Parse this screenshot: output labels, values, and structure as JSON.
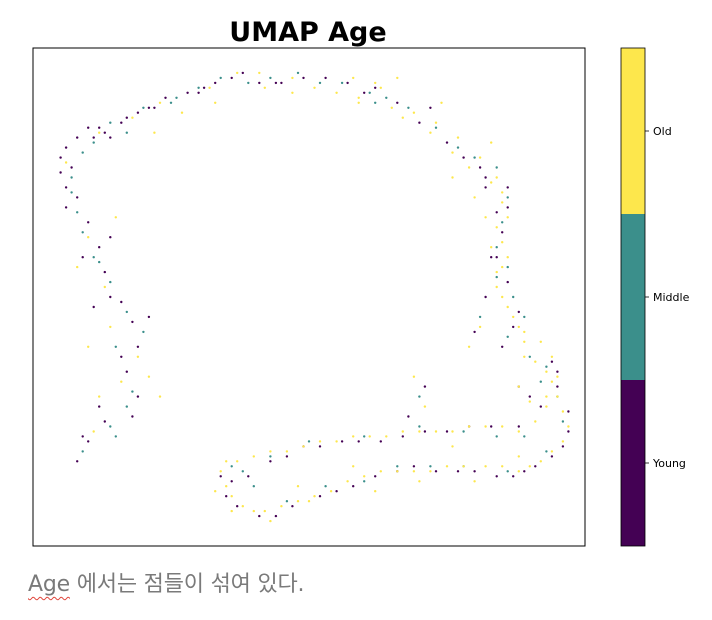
{
  "chart_data": {
    "type": "scatter",
    "title": "UMAP Age",
    "xlabel": "",
    "ylabel": "",
    "axes_ticks_visible": false,
    "grid": false,
    "legend": "colorbar-right",
    "colorbar": {
      "colormap": "viridis",
      "categories": [
        "Young",
        "Middle",
        "Old"
      ],
      "colors": {
        "Young": "#440154",
        "Middle": "#3b8f8b",
        "Old": "#fde74c"
      }
    },
    "xlim": [
      0,
      100
    ],
    "ylim": [
      0,
      100
    ],
    "series": [
      {
        "name": "Young",
        "color": "#440154",
        "points": [
          [
            8,
            17
          ],
          [
            10,
            21
          ],
          [
            13,
            25
          ],
          [
            12,
            28
          ],
          [
            17,
            35
          ],
          [
            19,
            40
          ],
          [
            18,
            45
          ],
          [
            16,
            49
          ],
          [
            14,
            50
          ],
          [
            13,
            55
          ],
          [
            12,
            60
          ],
          [
            10,
            65
          ],
          [
            8,
            70
          ],
          [
            6,
            72
          ],
          [
            5,
            75
          ],
          [
            5,
            78
          ],
          [
            6,
            80
          ],
          [
            8,
            82
          ],
          [
            10,
            84
          ],
          [
            12,
            84
          ],
          [
            13,
            83
          ],
          [
            14,
            82
          ],
          [
            16,
            85
          ],
          [
            19,
            87
          ],
          [
            21,
            88
          ],
          [
            24,
            90
          ],
          [
            28,
            91
          ],
          [
            31,
            92
          ],
          [
            33,
            93
          ],
          [
            36,
            94
          ],
          [
            38,
            95
          ],
          [
            41,
            93
          ],
          [
            45,
            93
          ],
          [
            49,
            94
          ],
          [
            53,
            94
          ],
          [
            57,
            93
          ],
          [
            62,
            92
          ],
          [
            66,
            89
          ],
          [
            70,
            85
          ],
          [
            75,
            81
          ],
          [
            78,
            78
          ],
          [
            81,
            76
          ],
          [
            82,
            74
          ],
          [
            86,
            72
          ],
          [
            86,
            68
          ],
          [
            85,
            63
          ],
          [
            84,
            58
          ],
          [
            86,
            53
          ],
          [
            88,
            47
          ],
          [
            87,
            44
          ],
          [
            85,
            40
          ],
          [
            88,
            32
          ],
          [
            90,
            30
          ],
          [
            92,
            28
          ],
          [
            88,
            24
          ],
          [
            83,
            24
          ],
          [
            79,
            24
          ],
          [
            75,
            23
          ],
          [
            71,
            23
          ],
          [
            67,
            22
          ],
          [
            63,
            21
          ],
          [
            59,
            21
          ],
          [
            56,
            21
          ],
          [
            52,
            20
          ],
          [
            49,
            20
          ],
          [
            46,
            18
          ],
          [
            43,
            17
          ],
          [
            39,
            14
          ],
          [
            36,
            13
          ],
          [
            34,
            14
          ],
          [
            35,
            10
          ],
          [
            37,
            8
          ],
          [
            41,
            6
          ],
          [
            44,
            6
          ],
          [
            47,
            8
          ],
          [
            52,
            10
          ],
          [
            55,
            11
          ],
          [
            58,
            12
          ],
          [
            62,
            14
          ],
          [
            66,
            15
          ],
          [
            69,
            16
          ],
          [
            73,
            15
          ],
          [
            77,
            15
          ],
          [
            80,
            15
          ],
          [
            84,
            14
          ],
          [
            87,
            14
          ],
          [
            89,
            15
          ],
          [
            91,
            16
          ],
          [
            94,
            18
          ],
          [
            96,
            20
          ],
          [
            97,
            23
          ],
          [
            97,
            27
          ],
          [
            95,
            32
          ],
          [
            95,
            35
          ],
          [
            94,
            37
          ],
          [
            68,
            26
          ],
          [
            71,
            32
          ],
          [
            80,
            43
          ],
          [
            82,
            50
          ],
          [
            83,
            58
          ],
          [
            84,
            67
          ],
          [
            82,
            72
          ],
          [
            72,
            88
          ],
          [
            60,
            91
          ],
          [
            44,
            93
          ],
          [
            30,
            91
          ],
          [
            22,
            88
          ],
          [
            17,
            86
          ],
          [
            11,
            82
          ],
          [
            7,
            76
          ],
          [
            9,
            58
          ],
          [
            11,
            48
          ],
          [
            16,
            38
          ],
          [
            19,
            30
          ],
          [
            18,
            26
          ],
          [
            9,
            22
          ],
          [
            21,
            46
          ],
          [
            14,
            62
          ],
          [
            6,
            68
          ]
        ]
      },
      {
        "name": "Middle",
        "color": "#3b8f8b",
        "points": [
          [
            9,
            19
          ],
          [
            14,
            24
          ],
          [
            17,
            28
          ],
          [
            18,
            31
          ],
          [
            15,
            40
          ],
          [
            17,
            47
          ],
          [
            14,
            53
          ],
          [
            11,
            58
          ],
          [
            9,
            63
          ],
          [
            8,
            67
          ],
          [
            7,
            74
          ],
          [
            9,
            79
          ],
          [
            11,
            81
          ],
          [
            14,
            85
          ],
          [
            17,
            83
          ],
          [
            20,
            88
          ],
          [
            25,
            89
          ],
          [
            30,
            92
          ],
          [
            34,
            94
          ],
          [
            39,
            93
          ],
          [
            43,
            94
          ],
          [
            48,
            95
          ],
          [
            52,
            93
          ],
          [
            56,
            93
          ],
          [
            61,
            91
          ],
          [
            64,
            90
          ],
          [
            68,
            88
          ],
          [
            73,
            84
          ],
          [
            77,
            80
          ],
          [
            80,
            78
          ],
          [
            84,
            76
          ],
          [
            86,
            70
          ],
          [
            85,
            65
          ],
          [
            84,
            60
          ],
          [
            86,
            56
          ],
          [
            87,
            50
          ],
          [
            89,
            46
          ],
          [
            86,
            42
          ],
          [
            90,
            38
          ],
          [
            92,
            33
          ],
          [
            89,
            22
          ],
          [
            84,
            22
          ],
          [
            78,
            23
          ],
          [
            70,
            24
          ],
          [
            60,
            22
          ],
          [
            50,
            21
          ],
          [
            43,
            18
          ],
          [
            38,
            15
          ],
          [
            40,
            12
          ],
          [
            46,
            9
          ],
          [
            53,
            12
          ],
          [
            60,
            13
          ],
          [
            66,
            16
          ],
          [
            72,
            16
          ],
          [
            78,
            16
          ],
          [
            86,
            15
          ],
          [
            93,
            19
          ],
          [
            96,
            25
          ],
          [
            95,
            30
          ],
          [
            93,
            36
          ],
          [
            70,
            30
          ],
          [
            81,
            46
          ],
          [
            84,
            54
          ],
          [
            20,
            43
          ],
          [
            12,
            57
          ],
          [
            7,
            71
          ],
          [
            26,
            90
          ],
          [
            62,
            89
          ],
          [
            36,
            16
          ],
          [
            15,
            22
          ]
        ]
      },
      {
        "name": "Old",
        "color": "#fde74c",
        "points": [
          [
            11,
            23
          ],
          [
            16,
            33
          ],
          [
            19,
            38
          ],
          [
            13,
            52
          ],
          [
            10,
            62
          ],
          [
            6,
            77
          ],
          [
            12,
            83
          ],
          [
            18,
            86
          ],
          [
            23,
            89
          ],
          [
            32,
            92
          ],
          [
            37,
            95
          ],
          [
            42,
            92
          ],
          [
            47,
            94
          ],
          [
            51,
            92
          ],
          [
            55,
            91
          ],
          [
            59,
            90
          ],
          [
            63,
            92
          ],
          [
            67,
            86
          ],
          [
            72,
            83
          ],
          [
            76,
            79
          ],
          [
            79,
            76
          ],
          [
            83,
            73
          ],
          [
            85,
            71
          ],
          [
            86,
            66
          ],
          [
            85,
            61
          ],
          [
            85,
            56
          ],
          [
            84,
            52
          ],
          [
            86,
            48
          ],
          [
            88,
            44
          ],
          [
            89,
            41
          ],
          [
            91,
            37
          ],
          [
            93,
            35
          ],
          [
            94,
            33
          ],
          [
            95,
            30
          ],
          [
            96,
            27
          ],
          [
            97,
            24
          ],
          [
            96,
            21
          ],
          [
            94,
            19
          ],
          [
            92,
            17
          ],
          [
            90,
            16
          ],
          [
            88,
            15
          ],
          [
            85,
            16
          ],
          [
            82,
            16
          ],
          [
            78,
            16
          ],
          [
            75,
            16
          ],
          [
            72,
            15
          ],
          [
            69,
            15
          ],
          [
            66,
            15
          ],
          [
            63,
            15
          ],
          [
            60,
            14
          ],
          [
            57,
            13
          ],
          [
            54,
            11
          ],
          [
            51,
            10
          ],
          [
            48,
            9
          ],
          [
            45,
            8
          ],
          [
            42,
            7
          ],
          [
            40,
            7
          ],
          [
            38,
            8
          ],
          [
            36,
            10
          ],
          [
            35,
            12
          ],
          [
            34,
            15
          ],
          [
            35,
            17
          ],
          [
            37,
            17
          ],
          [
            40,
            18
          ],
          [
            43,
            19
          ],
          [
            46,
            19
          ],
          [
            49,
            20
          ],
          [
            52,
            21
          ],
          [
            55,
            21
          ],
          [
            58,
            22
          ],
          [
            61,
            22
          ],
          [
            64,
            22
          ],
          [
            67,
            23
          ],
          [
            70,
            23
          ],
          [
            73,
            23
          ],
          [
            76,
            23
          ],
          [
            79,
            24
          ],
          [
            82,
            24
          ],
          [
            85,
            24
          ],
          [
            88,
            23
          ],
          [
            91,
            25
          ],
          [
            93,
            28
          ],
          [
            95,
            34
          ],
          [
            94,
            38
          ],
          [
            92,
            41
          ],
          [
            89,
            43
          ],
          [
            87,
            46
          ],
          [
            85,
            50
          ],
          [
            84,
            55
          ],
          [
            83,
            60
          ],
          [
            84,
            64
          ],
          [
            85,
            69
          ],
          [
            84,
            74
          ],
          [
            81,
            78
          ],
          [
            77,
            82
          ],
          [
            73,
            85
          ],
          [
            69,
            87
          ],
          [
            65,
            88
          ],
          [
            62,
            93
          ],
          [
            58,
            94
          ],
          [
            41,
            95
          ],
          [
            71,
            28
          ],
          [
            69,
            34
          ],
          [
            79,
            40
          ],
          [
            81,
            44
          ],
          [
            88,
            32
          ],
          [
            90,
            29
          ],
          [
            76,
            20
          ],
          [
            58,
            16
          ],
          [
            48,
            12
          ],
          [
            33,
            11
          ],
          [
            36,
            7
          ],
          [
            43,
            5
          ],
          [
            50,
            9
          ],
          [
            62,
            11
          ],
          [
            70,
            13
          ],
          [
            80,
            13
          ],
          [
            88,
            18
          ],
          [
            93,
            30
          ],
          [
            89,
            38
          ],
          [
            86,
            58
          ],
          [
            82,
            66
          ],
          [
            80,
            70
          ],
          [
            76,
            74
          ],
          [
            59,
            89
          ],
          [
            47,
            91
          ],
          [
            33,
            89
          ],
          [
            27,
            87
          ],
          [
            22,
            83
          ],
          [
            15,
            66
          ],
          [
            14,
            44
          ],
          [
            21,
            34
          ],
          [
            23,
            30
          ],
          [
            12,
            30
          ],
          [
            10,
            40
          ],
          [
            8,
            56
          ],
          [
            66,
            94
          ],
          [
            74,
            89
          ],
          [
            83,
            81
          ]
        ]
      }
    ]
  },
  "caption": {
    "underlined": "Age",
    "rest": " 에서는 점들이 섞여 있다."
  }
}
